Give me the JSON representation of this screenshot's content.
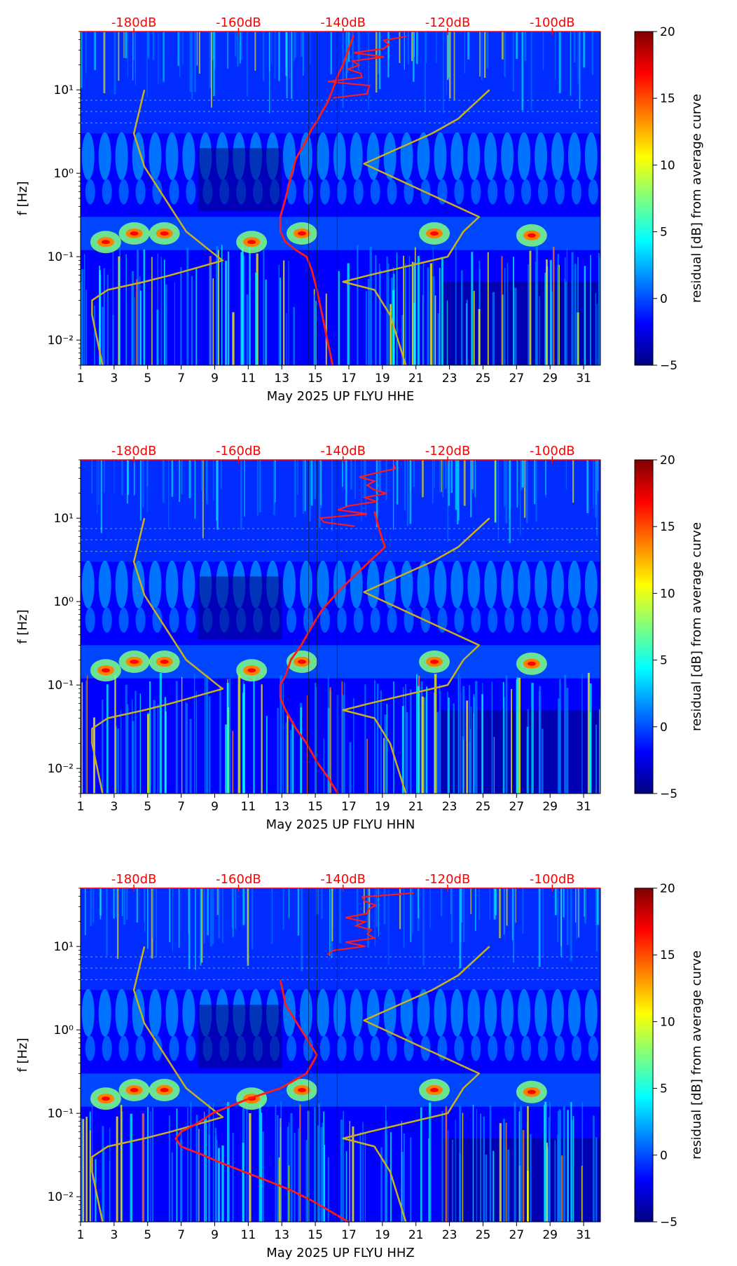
{
  "figure_background": "#ffffff",
  "colormap": [
    "#00007f",
    "#0000ff",
    "#007fff",
    "#00ffff",
    "#7fff7f",
    "#ffff00",
    "#ff7f00",
    "#ff0000",
    "#7f0000"
  ],
  "colors": {
    "psd_curve": "#ff1a1a",
    "noise_model": "#c8b020",
    "db_scale": "#ff0000"
  },
  "colorbar": {
    "label": "residual [dB] from average curve",
    "range": [
      -5,
      20
    ],
    "ticks": [
      -5,
      0,
      5,
      10,
      15,
      20
    ],
    "tick_labels": [
      "−5",
      "0",
      "5",
      "10",
      "15",
      "20"
    ]
  },
  "shared_axes": {
    "y_label": "f [Hz]",
    "y_scale": "log",
    "y_range": [
      0.005,
      50
    ],
    "y_ticks": [
      0.01,
      0.1,
      1,
      10
    ],
    "y_tick_labels": [
      "10⁻²",
      "10⁻¹",
      "10⁰",
      "10¹"
    ],
    "x_range": [
      1,
      32
    ],
    "x_ticks": [
      1,
      3,
      5,
      7,
      9,
      11,
      13,
      15,
      17,
      19,
      21,
      23,
      25,
      27,
      29,
      31
    ],
    "x_tick_labels": [
      "1",
      "3",
      "5",
      "7",
      "9",
      "11",
      "13",
      "15",
      "17",
      "19",
      "21",
      "23",
      "25",
      "27",
      "29",
      "31"
    ],
    "db_scale_ticks": [
      -180,
      -160,
      -140,
      -120,
      -100
    ],
    "db_scale_labels": [
      "-180dB",
      "-160dB",
      "-140dB",
      "-120dB",
      "-100dB"
    ],
    "db_range": [
      -190.2,
      -90.8
    ]
  },
  "chart_data": [
    {
      "type": "heatmap",
      "title": "",
      "xlabel": "May 2025 UP FLYU  HHE",
      "ylabel": "f [Hz]",
      "ylim": [
        0.005,
        50
      ],
      "xlim": [
        1,
        32
      ],
      "events": [
        {
          "day": 2.5,
          "freq": 0.15
        },
        {
          "day": 4.2,
          "freq": 0.19
        },
        {
          "day": 6.0,
          "freq": 0.19
        },
        {
          "day": 11.2,
          "freq": 0.15
        },
        {
          "day": 14.2,
          "freq": 0.19
        },
        {
          "day": 22.1,
          "freq": 0.19
        },
        {
          "day": 27.9,
          "freq": 0.18
        }
      ],
      "series": [
        {
          "name": "",
          "role": "psd",
          "dB": [
            -142,
            -143,
            -144,
            -145,
            -146,
            -147,
            -149,
            -151,
            -152,
            -152,
            -151,
            -150,
            -149,
            -147,
            -146,
            -145,
            -144,
            -143,
            -142,
            -141,
            -140,
            -139,
            -138
          ],
          "f": [
            0.005,
            0.01,
            0.02,
            0.04,
            0.07,
            0.1,
            0.12,
            0.15,
            0.2,
            0.3,
            0.5,
            0.9,
            1.5,
            2.5,
            3.4,
            4.2,
            5.5,
            7,
            10,
            15,
            20,
            30,
            45
          ]
        },
        {
          "name": "",
          "role": "noise_model",
          "dB": [
            -186,
            -187,
            -188,
            -188,
            -185,
            -178,
            -173,
            -163,
            -164,
            -170,
            -178,
            -180,
            -178
          ],
          "f": [
            0.005,
            0.01,
            0.02,
            0.03,
            0.04,
            0.05,
            0.06,
            0.09,
            0.1,
            0.2,
            1.2,
            3,
            10
          ]
        }
      ]
    },
    {
      "type": "heatmap",
      "title": "",
      "xlabel": "May 2025 UP FLYU  HHN",
      "ylabel": "f [Hz]",
      "ylim": [
        0.005,
        50
      ],
      "xlim": [
        1,
        32
      ],
      "events": [
        {
          "day": 2.5,
          "freq": 0.15
        },
        {
          "day": 4.2,
          "freq": 0.19
        },
        {
          "day": 6.0,
          "freq": 0.19
        },
        {
          "day": 11.2,
          "freq": 0.15
        },
        {
          "day": 14.2,
          "freq": 0.19
        },
        {
          "day": 22.1,
          "freq": 0.19
        },
        {
          "day": 27.9,
          "freq": 0.18
        }
      ],
      "series": [
        {
          "name": "",
          "role": "psd",
          "dB": [
            -141,
            -143,
            -145,
            -147,
            -149,
            -151,
            -152,
            -152,
            -151,
            -150,
            -148,
            -146,
            -144,
            -141,
            -138,
            -135,
            -132,
            -133,
            -134
          ],
          "f": [
            0.005,
            0.008,
            0.012,
            0.02,
            0.03,
            0.05,
            0.07,
            0.1,
            0.13,
            0.2,
            0.3,
            0.5,
            0.8,
            1.3,
            2,
            3,
            4.5,
            7,
            12
          ]
        },
        {
          "name": "",
          "role": "noise_model",
          "dB": [
            -186,
            -187,
            -188,
            -188,
            -185,
            -178,
            -173,
            -163,
            -164,
            -170,
            -178,
            -180,
            -178
          ],
          "f": [
            0.005,
            0.01,
            0.02,
            0.03,
            0.04,
            0.05,
            0.06,
            0.09,
            0.1,
            0.2,
            1.2,
            3,
            10
          ]
        }
      ]
    },
    {
      "type": "heatmap",
      "title": "",
      "xlabel": "May 2025 UP FLYU  HHZ",
      "ylabel": "f [Hz]",
      "ylim": [
        0.005,
        50
      ],
      "xlim": [
        1,
        32
      ],
      "events": [
        {
          "day": 2.5,
          "freq": 0.15
        },
        {
          "day": 4.2,
          "freq": 0.19
        },
        {
          "day": 6.0,
          "freq": 0.19
        },
        {
          "day": 11.2,
          "freq": 0.15
        },
        {
          "day": 14.2,
          "freq": 0.19
        },
        {
          "day": 22.1,
          "freq": 0.19
        },
        {
          "day": 27.9,
          "freq": 0.18
        }
      ],
      "series": [
        {
          "name": "",
          "role": "psd",
          "dB": [
            -139,
            -143,
            -146,
            -150,
            -155,
            -159,
            -163,
            -167,
            -171,
            -172,
            -171,
            -168,
            -165,
            -158,
            -152,
            -147,
            -145,
            -148,
            -151,
            -152
          ],
          "f": [
            0.005,
            0.007,
            0.009,
            0.012,
            0.016,
            0.02,
            0.025,
            0.032,
            0.04,
            0.05,
            0.06,
            0.075,
            0.1,
            0.15,
            0.2,
            0.3,
            0.5,
            1,
            2,
            4
          ]
        },
        {
          "name": "",
          "role": "noise_model",
          "dB": [
            -186,
            -187,
            -188,
            -188,
            -185,
            -178,
            -173,
            -163,
            -164,
            -170,
            -178,
            -180,
            -178
          ],
          "f": [
            0.005,
            0.01,
            0.02,
            0.03,
            0.04,
            0.05,
            0.06,
            0.09,
            0.1,
            0.2,
            1.2,
            3,
            10
          ]
        }
      ]
    }
  ]
}
